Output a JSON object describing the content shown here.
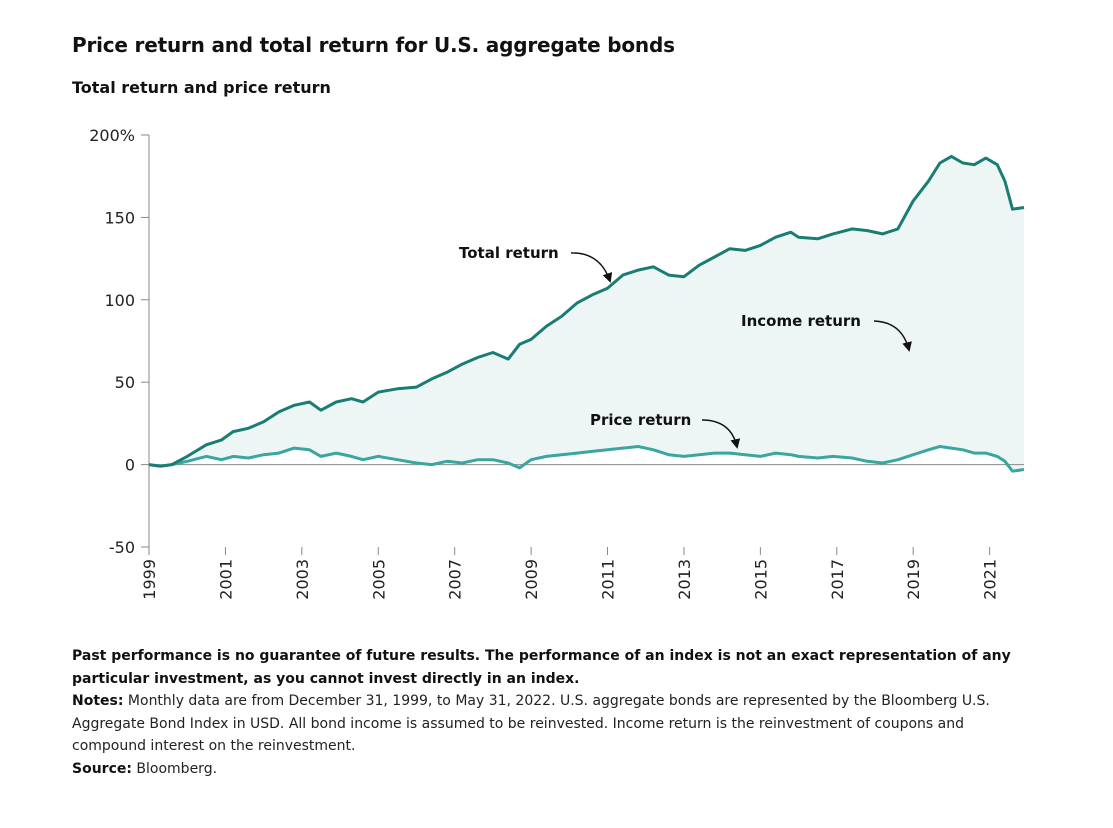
{
  "title": "Price return and total return for U.S. aggregate bonds",
  "subtitle": "Total return and price return",
  "chart_data": {
    "type": "area",
    "ylim": [
      -50,
      200
    ],
    "y_ticks": [
      -50,
      0,
      50,
      100,
      150,
      200
    ],
    "y_tick_labels": [
      "-50",
      "0",
      "50",
      "100",
      "150",
      "200%"
    ],
    "x_ticks": [
      1999,
      2001,
      2003,
      2005,
      2007,
      2009,
      2011,
      2013,
      2015,
      2017,
      2019,
      2021
    ],
    "x_tick_labels": [
      "1999",
      "2001",
      "2003",
      "2005",
      "2007",
      "2009",
      "2011",
      "2013",
      "2015",
      "2017",
      "2019",
      "2021"
    ],
    "series": [
      {
        "name": "Total return",
        "color": "#1a7d74",
        "points": [
          [
            1999.0,
            0
          ],
          [
            1999.3,
            -1
          ],
          [
            1999.6,
            0
          ],
          [
            2000.0,
            5
          ],
          [
            2000.5,
            12
          ],
          [
            2000.9,
            15
          ],
          [
            2001.2,
            20
          ],
          [
            2001.6,
            22
          ],
          [
            2002.0,
            26
          ],
          [
            2002.4,
            32
          ],
          [
            2002.8,
            36
          ],
          [
            2003.2,
            38
          ],
          [
            2003.5,
            33
          ],
          [
            2003.9,
            38
          ],
          [
            2004.3,
            40
          ],
          [
            2004.6,
            38
          ],
          [
            2005.0,
            44
          ],
          [
            2005.5,
            46
          ],
          [
            2006.0,
            47
          ],
          [
            2006.4,
            52
          ],
          [
            2006.8,
            56
          ],
          [
            2007.2,
            61
          ],
          [
            2007.6,
            65
          ],
          [
            2008.0,
            68
          ],
          [
            2008.4,
            64
          ],
          [
            2008.7,
            73
          ],
          [
            2009.0,
            76
          ],
          [
            2009.4,
            84
          ],
          [
            2009.8,
            90
          ],
          [
            2010.2,
            98
          ],
          [
            2010.6,
            103
          ],
          [
            2011.0,
            107
          ],
          [
            2011.4,
            115
          ],
          [
            2011.8,
            118
          ],
          [
            2012.2,
            120
          ],
          [
            2012.6,
            115
          ],
          [
            2013.0,
            114
          ],
          [
            2013.4,
            121
          ],
          [
            2013.8,
            126
          ],
          [
            2014.2,
            131
          ],
          [
            2014.6,
            130
          ],
          [
            2015.0,
            133
          ],
          [
            2015.4,
            138
          ],
          [
            2015.8,
            141
          ],
          [
            2016.0,
            138
          ],
          [
            2016.5,
            137
          ],
          [
            2016.9,
            140
          ],
          [
            2017.4,
            143
          ],
          [
            2017.8,
            142
          ],
          [
            2018.2,
            140
          ],
          [
            2018.6,
            143
          ],
          [
            2019.0,
            160
          ],
          [
            2019.4,
            172
          ],
          [
            2019.7,
            183
          ],
          [
            2020.0,
            187
          ],
          [
            2020.3,
            183
          ],
          [
            2020.6,
            182
          ],
          [
            2020.9,
            186
          ],
          [
            2021.2,
            182
          ],
          [
            2021.4,
            172
          ],
          [
            2021.6,
            155
          ],
          [
            2021.9,
            156
          ]
        ]
      },
      {
        "name": "Price return",
        "color": "#3aa6a0",
        "points": [
          [
            1999.0,
            0
          ],
          [
            1999.3,
            -1
          ],
          [
            1999.6,
            0
          ],
          [
            2000.0,
            2
          ],
          [
            2000.5,
            5
          ],
          [
            2000.9,
            3
          ],
          [
            2001.2,
            5
          ],
          [
            2001.6,
            4
          ],
          [
            2002.0,
            6
          ],
          [
            2002.4,
            7
          ],
          [
            2002.8,
            10
          ],
          [
            2003.2,
            9
          ],
          [
            2003.5,
            5
          ],
          [
            2003.9,
            7
          ],
          [
            2004.3,
            5
          ],
          [
            2004.6,
            3
          ],
          [
            2005.0,
            5
          ],
          [
            2005.5,
            3
          ],
          [
            2006.0,
            1
          ],
          [
            2006.4,
            0
          ],
          [
            2006.8,
            2
          ],
          [
            2007.2,
            1
          ],
          [
            2007.6,
            3
          ],
          [
            2008.0,
            3
          ],
          [
            2008.4,
            1
          ],
          [
            2008.7,
            -2
          ],
          [
            2009.0,
            3
          ],
          [
            2009.4,
            5
          ],
          [
            2009.8,
            6
          ],
          [
            2010.2,
            7
          ],
          [
            2010.6,
            8
          ],
          [
            2011.0,
            9
          ],
          [
            2011.4,
            10
          ],
          [
            2011.8,
            11
          ],
          [
            2012.2,
            9
          ],
          [
            2012.6,
            6
          ],
          [
            2013.0,
            5
          ],
          [
            2013.4,
            6
          ],
          [
            2013.8,
            7
          ],
          [
            2014.2,
            7
          ],
          [
            2014.6,
            6
          ],
          [
            2015.0,
            5
          ],
          [
            2015.4,
            7
          ],
          [
            2015.8,
            6
          ],
          [
            2016.0,
            5
          ],
          [
            2016.5,
            4
          ],
          [
            2016.9,
            5
          ],
          [
            2017.4,
            4
          ],
          [
            2017.8,
            2
          ],
          [
            2018.2,
            1
          ],
          [
            2018.6,
            3
          ],
          [
            2019.0,
            6
          ],
          [
            2019.4,
            9
          ],
          [
            2019.7,
            11
          ],
          [
            2020.0,
            10
          ],
          [
            2020.3,
            9
          ],
          [
            2020.6,
            7
          ],
          [
            2020.9,
            7
          ],
          [
            2021.2,
            5
          ],
          [
            2021.4,
            2
          ],
          [
            2021.6,
            -4
          ],
          [
            2021.9,
            -3
          ]
        ]
      }
    ],
    "area": {
      "name": "Income return",
      "between": [
        "Price return",
        "Total return"
      ],
      "color": "#eef6f5"
    },
    "annotations": [
      {
        "text": "Total return",
        "target": "Total return"
      },
      {
        "text": "Income return",
        "target": "area"
      },
      {
        "text": "Price return",
        "target": "Price return"
      }
    ]
  },
  "footer": {
    "disclaimer": "Past performance is no guarantee of future results. The performance of an index is not an exact representation of any particular investment, as you cannot invest directly in an index.",
    "notes_label": "Notes:",
    "notes_text": " Monthly data are from December 31, 1999, to May 31, 2022. U.S. aggregate bonds are represented by the Bloomberg U.S. Aggregate Bond Index in USD. All bond income is assumed to be reinvested. Income return is the reinvestment of coupons and compound interest on the reinvestment.",
    "source_label": "Source:",
    "source_text": " Bloomberg."
  }
}
